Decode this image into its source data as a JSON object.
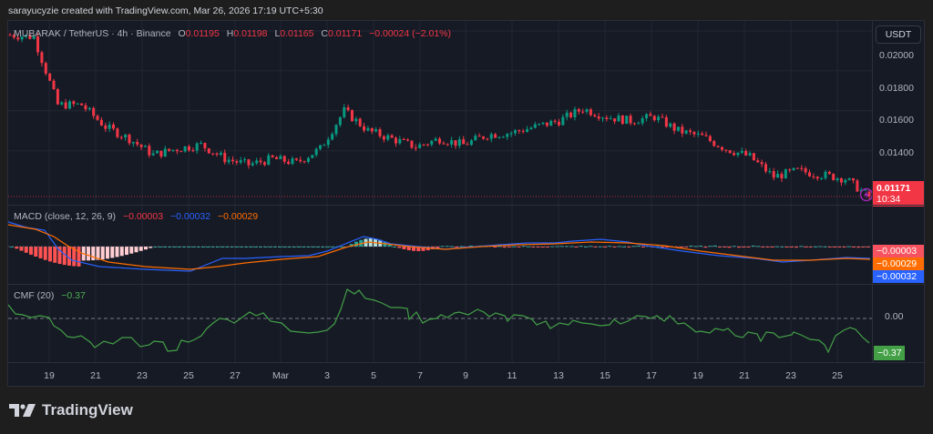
{
  "caption": "sarayucyzie created with TradingView.com, Mar 26, 2026 17:19 UTC+5:30",
  "symbol": {
    "name": "MUBARAK / TetherUS · 4h · Binance",
    "open_label": "O",
    "open": "0.01195",
    "high_label": "H",
    "high": "0.01198",
    "low_label": "L",
    "low": "0.01165",
    "close_label": "C",
    "close": "0.01171",
    "change": "−0.00024 (−2.01%)"
  },
  "currency_button": "USDT",
  "price_axis": {
    "ticks": [
      "0.02000",
      "0.01800",
      "0.01600",
      "0.01400"
    ],
    "last_price": "0.01171",
    "countdown": "10:34"
  },
  "macd": {
    "title": "MACD (close, 12, 26, 9)",
    "histogram": "−0.00003",
    "macd": "−0.00032",
    "signal": "−0.00029",
    "labels": [
      "−0.00003",
      "−0.00029",
      "−0.00032"
    ]
  },
  "cmf": {
    "title": "CMF (20)",
    "value": "−0.37",
    "zero_tick": "0.00",
    "last_label": "−0.37"
  },
  "time_axis": [
    "19",
    "21",
    "23",
    "25",
    "27",
    "Mar",
    "3",
    "5",
    "7",
    "9",
    "11",
    "13",
    "15",
    "17",
    "19",
    "21",
    "23",
    "25"
  ],
  "brand": "TradingView",
  "colors": {
    "up": "#089981",
    "down": "#f23645",
    "macd_line": "#2962ff",
    "signal_line": "#ff6d00",
    "cmf_line": "#43a047",
    "background": "#161a25"
  },
  "chart_data": [
    {
      "type": "candlestick",
      "title": "MUBARAK / TetherUS · 4h · Binance",
      "ylabel": "USDT",
      "ylim": [
        0.0113,
        0.0205
      ],
      "x_ticks": [
        "19",
        "21",
        "23",
        "25",
        "27",
        "Mar",
        "3",
        "5",
        "7",
        "9",
        "11",
        "13",
        "15",
        "17",
        "19",
        "21",
        "23",
        "25"
      ],
      "y_ticks": [
        0.02,
        0.018,
        0.016,
        0.014
      ],
      "last": {
        "open": 0.01195,
        "high": 0.01198,
        "low": 0.01165,
        "close": 0.01171,
        "change": -0.00024,
        "change_pct": -2.01
      },
      "approx_close_path": [
        {
          "x": "Feb 18",
          "close": 0.0198
        },
        {
          "x": "Feb 19",
          "close": 0.0197
        },
        {
          "x": "Feb 20",
          "close": 0.0163
        },
        {
          "x": "Feb 21",
          "close": 0.0163
        },
        {
          "x": "Feb 22",
          "close": 0.0152
        },
        {
          "x": "Feb 23",
          "close": 0.0146
        },
        {
          "x": "Feb 24",
          "close": 0.0138
        },
        {
          "x": "Feb 25",
          "close": 0.0141
        },
        {
          "x": "Feb 26",
          "close": 0.0143
        },
        {
          "x": "Feb 27",
          "close": 0.0136
        },
        {
          "x": "Feb 28",
          "close": 0.0133
        },
        {
          "x": "Mar 1",
          "close": 0.0136
        },
        {
          "x": "Mar 2",
          "close": 0.0134
        },
        {
          "x": "Mar 3",
          "close": 0.0141
        },
        {
          "x": "Mar 4",
          "close": 0.016
        },
        {
          "x": "Mar 5",
          "close": 0.015
        },
        {
          "x": "Mar 6",
          "close": 0.0146
        },
        {
          "x": "Mar 7",
          "close": 0.0142
        },
        {
          "x": "Mar 8",
          "close": 0.0146
        },
        {
          "x": "Mar 9",
          "close": 0.0143
        },
        {
          "x": "Mar 10",
          "close": 0.0148
        },
        {
          "x": "Mar 11",
          "close": 0.0149
        },
        {
          "x": "Mar 12",
          "close": 0.0152
        },
        {
          "x": "Mar 13",
          "close": 0.0155
        },
        {
          "x": "Mar 14",
          "close": 0.0161
        },
        {
          "x": "Mar 15",
          "close": 0.0157
        },
        {
          "x": "Mar 16",
          "close": 0.0155
        },
        {
          "x": "Mar 17",
          "close": 0.0157
        },
        {
          "x": "Mar 18",
          "close": 0.015
        },
        {
          "x": "Mar 19",
          "close": 0.0147
        },
        {
          "x": "Mar 20",
          "close": 0.0141
        },
        {
          "x": "Mar 21",
          "close": 0.0137
        },
        {
          "x": "Mar 22",
          "close": 0.0127
        },
        {
          "x": "Mar 23",
          "close": 0.013
        },
        {
          "x": "Mar 24",
          "close": 0.0128
        },
        {
          "x": "Mar 25",
          "close": 0.0126
        },
        {
          "x": "Mar 26",
          "close": 0.01171
        }
      ]
    },
    {
      "type": "line",
      "title": "MACD (close, 12, 26, 9)",
      "series": [
        {
          "name": "Histogram",
          "last": -3e-05
        },
        {
          "name": "MACD",
          "last": -0.00032
        },
        {
          "name": "Signal",
          "last": -0.00029
        }
      ]
    },
    {
      "type": "line",
      "title": "CMF (20)",
      "y_ticks": [
        0.0
      ],
      "series": [
        {
          "name": "CMF",
          "last": -0.37
        }
      ]
    }
  ]
}
